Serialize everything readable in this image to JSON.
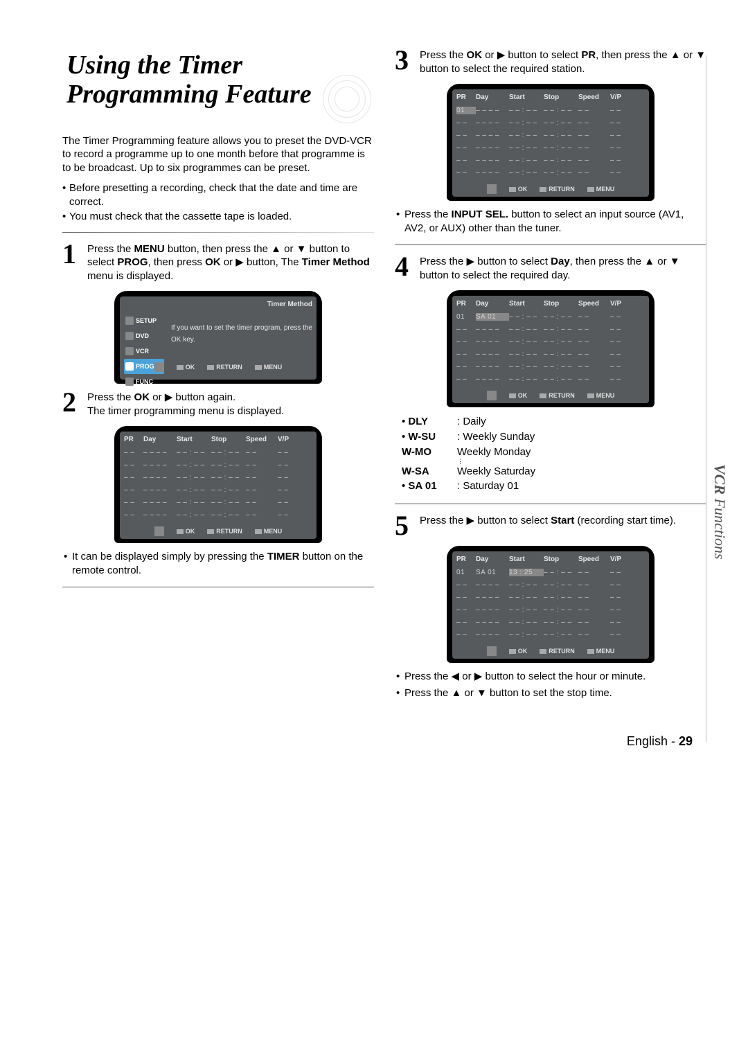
{
  "title": {
    "line1": "Using the Timer",
    "line2": "Programming Feature"
  },
  "intro": "The Timer Programming feature allows you to preset the DVD-VCR to record a programme up to one month before that programme is to be broadcast. Up to six programmes can be preset.",
  "intro_bullets": [
    "Before presetting a recording, check that the date and time are correct.",
    "You must check that the cassette tape is loaded."
  ],
  "steps": {
    "s1": {
      "num": "1",
      "html": "Press the <b>MENU</b> button, then press the ▲ or ▼ button to select <b>PROG</b>, then press <b>OK</b> or ▶ button, The <b>Timer Method</b> menu is displayed."
    },
    "s2": {
      "num": "2",
      "html": "Press the <b>OK</b> or ▶ button again.<br>The timer programming menu is displayed."
    },
    "s2_note": "It can be displayed simply by pressing the <b>TIMER</b> button on the remote control.",
    "s3": {
      "num": "3",
      "html": "Press the <b>OK</b> or ▶ button to select <b>PR</b>, then press the ▲ or ▼ button to select the required station."
    },
    "s3_note": "Press the <b>INPUT SEL.</b> button to select an input source (AV1, AV2, or AUX) other than the tuner.",
    "s4": {
      "num": "4",
      "html": "Press the ▶ button to select <b>Day</b>, then press the ▲ or ▼ button to select the required day."
    },
    "s5": {
      "num": "5",
      "html": "Press the ▶ button to select <b>Start</b> (recording start time)."
    },
    "s5_notes": [
      "Press the ◀ or ▶ button to select the hour or minute.",
      "Press the ▲ or ▼ button to set the stop time."
    ]
  },
  "osd_menu": {
    "title": "Timer Method",
    "items": [
      "SETUP",
      "DVD",
      "VCR",
      "PROG",
      "FUNC"
    ],
    "body": "If you want to set the timer program, press the  OK  key.",
    "footer": {
      "ok": "OK",
      "return": "RETURN",
      "menu": "MENU"
    }
  },
  "osd_table": {
    "headers": [
      "PR",
      "Day",
      "Start",
      "Stop",
      "Speed",
      "V/P"
    ],
    "empty_row": [
      "– –",
      "– –  – –",
      "– – : – –",
      "– – : – –",
      "– –",
      "– –"
    ],
    "footer": {
      "ok": "OK",
      "return": "RETURN",
      "menu": "MENU"
    }
  },
  "osd_step3_row": {
    "pr": "01"
  },
  "osd_step4_row": {
    "pr": "01",
    "day": "SA  01"
  },
  "osd_step5_row": {
    "pr": "01",
    "day": "SA  01",
    "start": "13 : 25"
  },
  "day_defs": [
    {
      "k": "DLY",
      "v": ": Daily",
      "bullet": true
    },
    {
      "k": "W-SU",
      "v": ": Weekly Sunday",
      "bullet": true
    },
    {
      "k": "W-MO",
      "v": "Weekly Monday",
      "bullet": false
    },
    {
      "dots": true
    },
    {
      "k": "W-SA",
      "v": "Weekly Saturday",
      "bullet": false
    },
    {
      "k": "SA 01",
      "v": ": Saturday 01",
      "bullet": true
    }
  ],
  "side_tab": {
    "bold": "VCR ",
    "rest": "Functions"
  },
  "footer": {
    "lang": "English - ",
    "page": "29"
  },
  "colors": {
    "osd_bg": "#565a5d",
    "osd_outer": "#000000",
    "text": "#000000"
  }
}
